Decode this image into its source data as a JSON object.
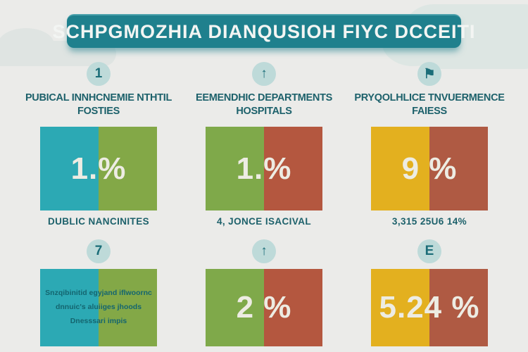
{
  "header": {
    "title": "SCHPGMOZHIA DIANQUSIOH FIYC DCCEITI"
  },
  "palette": {
    "background": "#EBEBE9",
    "banner": "#1F808D",
    "heading_text": "#1D616B",
    "icon_circle": "#BEDAD9",
    "value_text": "#EDECE3",
    "teal_block": "#2CA9B4",
    "green_block": "#83A847",
    "red_block": "#B4573F",
    "yellow_block": "#E3B01F"
  },
  "row1": [
    {
      "icon": "1",
      "heading_line1": "PUBICAL INNHCNEMIE NTHTIL",
      "heading_line2": "FOSTIES",
      "left_color": "#2CA9B4",
      "right_color": "#83A847",
      "value": "1.%",
      "caption": "DUBLIC NANCINITES"
    },
    {
      "icon": "↑",
      "heading_line1": "EEMENDHIC DEPARTMENTS",
      "heading_line2": "HOSPITALS",
      "left_color": "#7FA94A",
      "right_color": "#B4573F",
      "value": "1.%",
      "caption": "4, JONCE ISACIVAL"
    },
    {
      "icon": "⚑",
      "heading_line1": "PRYQOLHLICE TNVUERMENCE",
      "heading_line2": "FAIESS",
      "left_color": "#E3B01F",
      "right_color": "#AF5A43",
      "value": "9 %",
      "caption": "3,315 25U6 14%"
    }
  ],
  "row2": [
    {
      "icon": "7",
      "left_color": "#2CA9B4",
      "right_color": "#83A847",
      "text_lines": [
        "Snzqibinitid egyjand iflwoornc",
        "dnnuic's aluiiges jhoods",
        "Dnesssari impis"
      ]
    },
    {
      "icon": "↑",
      "left_color": "#7FA94A",
      "right_color": "#B4573F",
      "value": "2 %"
    },
    {
      "icon": "E",
      "left_color": "#E3B01F",
      "right_color": "#AF5A43",
      "value": "5.24 %"
    }
  ]
}
